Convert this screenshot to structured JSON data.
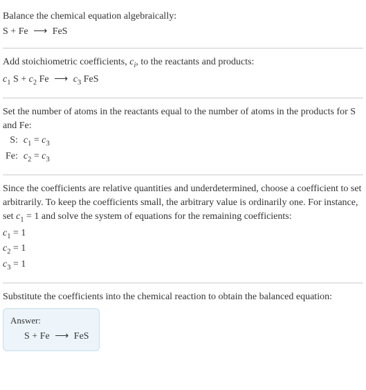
{
  "colors": {
    "text": "#333333",
    "background": "#ffffff",
    "hr": "#cccccc",
    "answer_bg": "#edf5fa",
    "answer_border": "#c5ddec"
  },
  "typography": {
    "body_fontsize": 14,
    "answer_label_fontsize": 13,
    "font_family": "Georgia, 'Times New Roman', serif"
  },
  "section1": {
    "line1": "Balance the chemical equation algebraically:",
    "eq_lhs1": "S",
    "plus": "+",
    "eq_lhs2": "Fe",
    "arrow": "⟶",
    "eq_rhs": "FeS"
  },
  "section2": {
    "line1a": "Add stoichiometric coefficients, ",
    "line1_ci_c": "c",
    "line1_ci_i": "i",
    "line1b": ", to the reactants and products:",
    "c1": "c",
    "n1": "1",
    "sp1": " S",
    "plus": "+",
    "c2": "c",
    "n2": "2",
    "sp2": " Fe",
    "arrow": "⟶",
    "c3": "c",
    "n3": "3",
    "sp3": " FeS"
  },
  "section3": {
    "line1": "Set the number of atoms in the reactants equal to the number of atoms in the products for S and Fe:",
    "row1_label": "S:",
    "row1_c1": "c",
    "row1_n1": "1",
    "row1_eq": " = ",
    "row1_c2": "c",
    "row1_n2": "3",
    "row2_label": "Fe:",
    "row2_c1": "c",
    "row2_n1": "2",
    "row2_eq": " = ",
    "row2_c2": "c",
    "row2_n2": "3"
  },
  "section4": {
    "line1a": "Since the coefficients are relative quantities and underdetermined, choose a coefficient to set arbitrarily. To keep the coefficients small, the arbitrary value is ordinarily one. For instance, set ",
    "line1_c": "c",
    "line1_n": "1",
    "line1b": " = 1 and solve the system of equations for the remaining coefficients:",
    "r1_c": "c",
    "r1_n": "1",
    "r1_v": " = 1",
    "r2_c": "c",
    "r2_n": "2",
    "r2_v": " = 1",
    "r3_c": "c",
    "r3_n": "3",
    "r3_v": " = 1"
  },
  "section5": {
    "line1": "Substitute the coefficients into the chemical reaction to obtain the balanced equation:",
    "answer_label": "Answer:",
    "eq_lhs1": "S",
    "plus": "+",
    "eq_lhs2": "Fe",
    "arrow": "⟶",
    "eq_rhs": "FeS"
  }
}
